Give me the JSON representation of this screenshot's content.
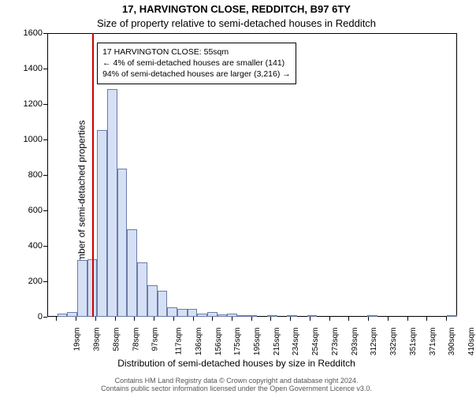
{
  "chart": {
    "type": "histogram",
    "title_line1": "17, HARVINGTON CLOSE, REDDITCH, B97 6TY",
    "title_line2": "Size of property relative to semi-detached houses in Redditch",
    "ylabel": "Number of semi-detached properties",
    "xlabel": "Distribution of semi-detached houses by size in Redditch",
    "attribution": "Contains HM Land Registry data © Crown copyright and database right 2024.\nContains public sector information licensed under the Open Government Licence v3.0.",
    "background_color": "#ffffff",
    "axis_color": "#000000",
    "bar_fill": "#d6e0f5",
    "bar_stroke": "#6a7ba8",
    "bar_stroke_width": 1,
    "marker_color": "#cc0000",
    "marker_width": 1.5,
    "marker_sqm": 55,
    "annotation_border": "#000000",
    "annotation_bg": "#ffffff",
    "annotation_lines": [
      "17 HARVINGTON CLOSE: 55sqm",
      "← 4% of semi-detached houses are smaller (141)",
      "94% of semi-detached houses are larger (3,216) →"
    ],
    "annotation_fontsize": 10.5,
    "title_fontsize": 13,
    "label_fontsize": 12,
    "tick_fontsize": 11,
    "xtick_fontsize": 10,
    "ylim": [
      0,
      1600
    ],
    "ytick_step": 200,
    "x_start": 10,
    "x_end": 420,
    "bin_width_sqm": 10,
    "xtick_start": 19,
    "xtick_step_sqm": 19.5,
    "xtick_labels": [
      "19sqm",
      "39sqm",
      "58sqm",
      "78sqm",
      "97sqm",
      "117sqm",
      "136sqm",
      "156sqm",
      "175sqm",
      "195sqm",
      "215sqm",
      "234sqm",
      "254sqm",
      "273sqm",
      "293sqm",
      "312sqm",
      "332sqm",
      "351sqm",
      "371sqm",
      "390sqm",
      "410sqm"
    ],
    "bins": [
      {
        "x": 10,
        "count": 0
      },
      {
        "x": 20,
        "count": 20
      },
      {
        "x": 30,
        "count": 25
      },
      {
        "x": 40,
        "count": 320
      },
      {
        "x": 50,
        "count": 325
      },
      {
        "x": 60,
        "count": 1055
      },
      {
        "x": 70,
        "count": 1285
      },
      {
        "x": 80,
        "count": 835
      },
      {
        "x": 90,
        "count": 495
      },
      {
        "x": 100,
        "count": 305
      },
      {
        "x": 110,
        "count": 180
      },
      {
        "x": 120,
        "count": 145
      },
      {
        "x": 130,
        "count": 55
      },
      {
        "x": 140,
        "count": 45
      },
      {
        "x": 150,
        "count": 45
      },
      {
        "x": 160,
        "count": 20
      },
      {
        "x": 170,
        "count": 25
      },
      {
        "x": 180,
        "count": 15
      },
      {
        "x": 190,
        "count": 20
      },
      {
        "x": 200,
        "count": 5
      },
      {
        "x": 210,
        "count": 5
      },
      {
        "x": 220,
        "count": 0
      },
      {
        "x": 230,
        "count": 3
      },
      {
        "x": 240,
        "count": 0
      },
      {
        "x": 250,
        "count": 3
      },
      {
        "x": 260,
        "count": 0
      },
      {
        "x": 270,
        "count": 3
      },
      {
        "x": 280,
        "count": 0
      },
      {
        "x": 290,
        "count": 0
      },
      {
        "x": 300,
        "count": 0
      },
      {
        "x": 310,
        "count": 0
      },
      {
        "x": 320,
        "count": 0
      },
      {
        "x": 330,
        "count": 3
      },
      {
        "x": 340,
        "count": 0
      },
      {
        "x": 350,
        "count": 0
      },
      {
        "x": 360,
        "count": 0
      },
      {
        "x": 370,
        "count": 0
      },
      {
        "x": 380,
        "count": 0
      },
      {
        "x": 390,
        "count": 0
      },
      {
        "x": 400,
        "count": 0
      },
      {
        "x": 410,
        "count": 3
      }
    ]
  }
}
